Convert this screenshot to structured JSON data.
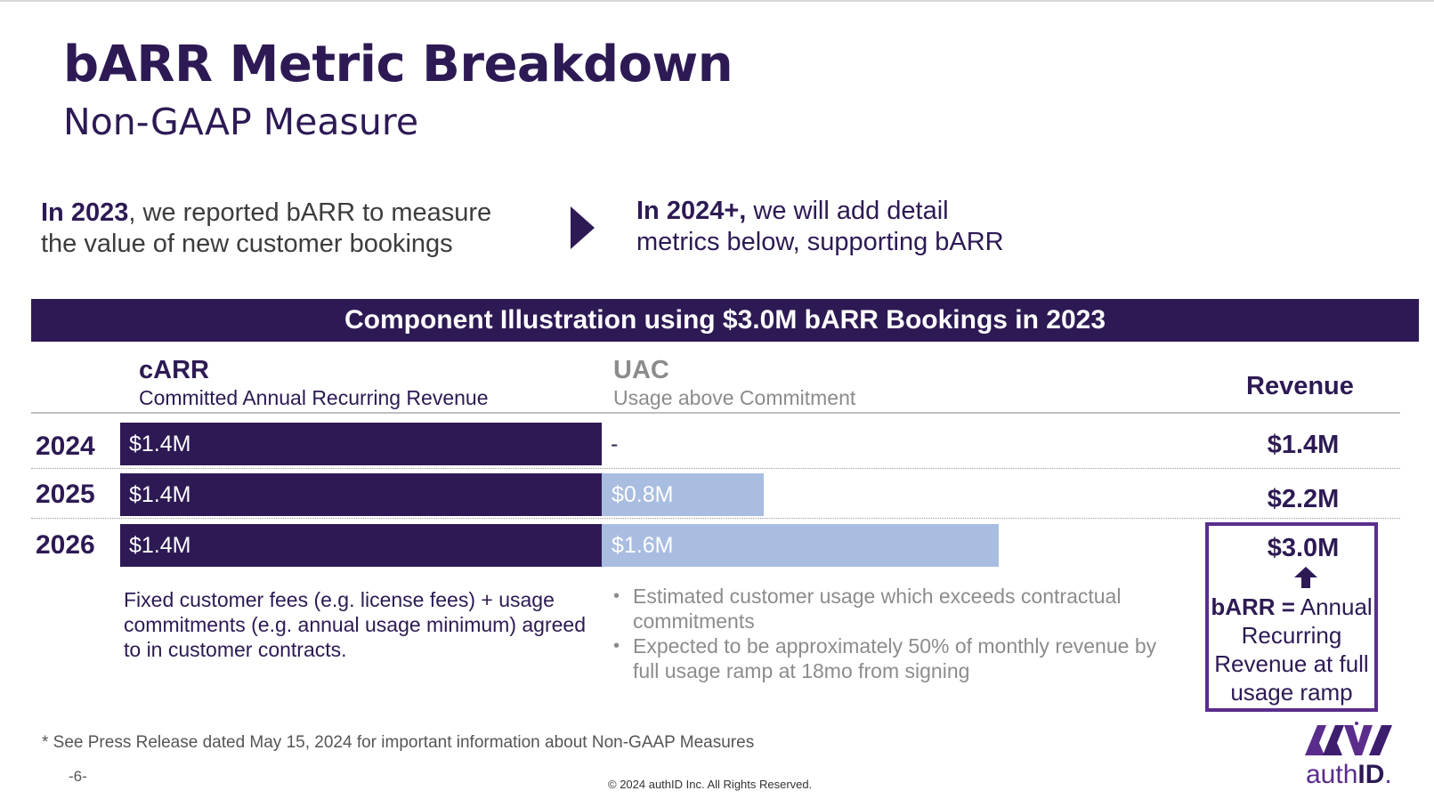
{
  "title": "bARR Metric Breakdown",
  "subtitle": "Non-GAAP Measure",
  "intro_left": {
    "bold": "In 2023",
    "line1": ", we reported bARR to measure",
    "line2": "the value of new customer bookings"
  },
  "intro_right": {
    "bold": "In 2024+,",
    "line1": " we will add detail",
    "line2": "metrics below, supporting bARR"
  },
  "banner": "Component Illustration using $3.0M bARR Bookings in 2023",
  "columns": {
    "carr": {
      "title": "cARR",
      "subtitle": "Committed Annual Recurring Revenue"
    },
    "uac": {
      "title": "UAC",
      "subtitle": "Usage above Commitment"
    },
    "revenue": {
      "title": "Revenue"
    }
  },
  "rows": [
    {
      "year": "2024",
      "carr": "$1.4M",
      "uac": "-",
      "revenue": "$1.4M"
    },
    {
      "year": "2025",
      "carr": "$1.4M",
      "uac": "$0.8M",
      "revenue": "$2.2M"
    },
    {
      "year": "2026",
      "carr": "$1.4M",
      "uac": "$1.6M",
      "revenue": "$3.0M"
    }
  ],
  "chart_data": {
    "type": "bar",
    "categories": [
      "2024",
      "2025",
      "2026"
    ],
    "series": [
      {
        "name": "cARR",
        "values": [
          1.4,
          1.4,
          1.4
        ]
      },
      {
        "name": "UAC",
        "values": [
          0,
          0.8,
          1.6
        ]
      }
    ],
    "stacked": true,
    "orientation": "horizontal",
    "colors": {
      "cARR": "#2d1a54",
      "UAC": "#a9bde1"
    }
  },
  "barr_note": {
    "bold": "bARR =",
    "line1": " Annual",
    "line2": "Recurring",
    "line3": "Revenue at full",
    "line4": "usage ramp"
  },
  "carr_description": "Fixed customer fees (e.g. license fees) + usage commitments (e.g. annual usage minimum) agreed to in customer contracts.",
  "uac_bullets": [
    "Estimated customer usage which exceeds contractual commitments",
    "Expected to be approximately 50% of monthly revenue by full usage ramp at 18mo from signing"
  ],
  "footnote": "* See Press Release dated May 15, 2024 for important information about Non-GAAP Measures",
  "page_number": "-6-",
  "copyright": "© 2024 authID Inc. All Rights Reserved.",
  "logo": {
    "text_light": "auth",
    "text_bold": "ID",
    "trademark": "."
  },
  "colors": {
    "brand_dark": "#2d1a54",
    "brand_purple": "#5a2d8c",
    "uac_bar": "#a9bde1"
  }
}
